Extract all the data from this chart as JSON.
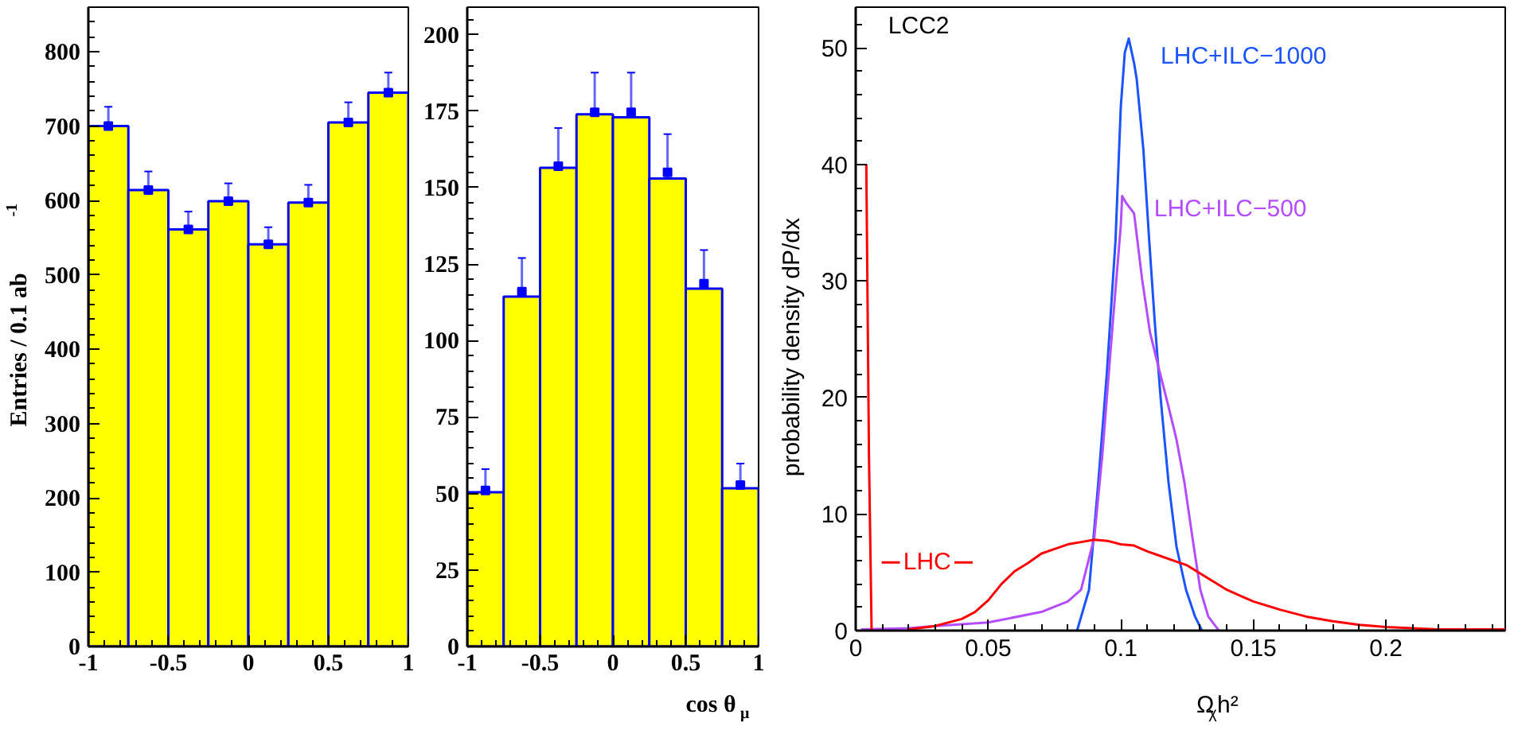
{
  "chart_data": [
    {
      "type": "histogram",
      "ylabel": "Entries / 0.1 ab$^{-1}$",
      "bins": [
        -1,
        -0.75,
        -0.5,
        -0.25,
        0,
        0.25,
        0.5,
        0.75,
        1
      ],
      "values": [
        700,
        614,
        561,
        599,
        541,
        597,
        705,
        745
      ],
      "color": "#ffff00",
      "xlim": [
        -1,
        1
      ],
      "ylim": [
        0,
        860
      ],
      "xticks": [
        -1,
        -0.5,
        0,
        0.5,
        1
      ],
      "yticks": [
        0,
        100,
        200,
        300,
        400,
        500,
        600,
        700,
        800
      ],
      "series": [
        {
          "type": "scatter",
          "x": [
            -0.875,
            -0.625,
            -0.375,
            -0.125,
            0.125,
            0.375,
            0.625,
            0.875
          ],
          "values": [
            700,
            614,
            561,
            599,
            541,
            597,
            705,
            745
          ],
          "errors": [
            26,
            25,
            24,
            24,
            23,
            24,
            27,
            27
          ],
          "color": "#0000ff",
          "marker": "square"
        }
      ]
    },
    {
      "type": "histogram",
      "xlabel": "cos θ$_{μ}$",
      "bins": [
        -1,
        -0.75,
        -0.5,
        -0.25,
        0,
        0.25,
        0.5,
        0.75,
        1
      ],
      "values": [
        50.4,
        114.4,
        156.5,
        174,
        173,
        153,
        117,
        51.7
      ],
      "color": "#ffff00",
      "xlim": [
        -1,
        1
      ],
      "ylim": [
        0,
        209
      ],
      "xticks": [
        -1,
        -0.5,
        0,
        0.5,
        1
      ],
      "yticks": [
        0,
        25,
        50,
        75,
        100,
        125,
        150,
        175,
        200
      ],
      "series": [
        {
          "type": "scatter",
          "x": [
            -0.875,
            -0.625,
            -0.375,
            -0.125,
            0.125,
            0.375,
            0.625,
            0.875
          ],
          "values": [
            51,
            116,
            157,
            174.6,
            174.6,
            155,
            118.6,
            52.8
          ],
          "errors": [
            7,
            11,
            12.5,
            13,
            13,
            12.5,
            11,
            7
          ],
          "color": "#0000ff",
          "marker": "square"
        }
      ]
    },
    {
      "type": "line",
      "xlabel": "Ω$_{χ}$h²",
      "ylabel": "probability density dP/dx",
      "annotations": [
        "LCC2"
      ],
      "xlim": [
        0,
        0.245
      ],
      "ylim": [
        0,
        53.5
      ],
      "xticks": [
        0,
        0.05,
        0.1,
        0.15,
        0.2
      ],
      "yticks": [
        0,
        10,
        20,
        30,
        40,
        50
      ],
      "line_style": "solid",
      "series": [
        {
          "name": "LHC+ILC−1000",
          "color": "#1a53ff",
          "x": [
            0.0835,
            0.088,
            0.0915,
            0.0947,
            0.098,
            0.1,
            0.1015,
            0.103,
            0.105,
            0.106,
            0.1085,
            0.1107,
            0.1128,
            0.115,
            0.118,
            0.121,
            0.1246,
            0.128,
            0.1306
          ],
          "values": [
            0,
            3.5,
            12.7,
            22,
            33.5,
            45,
            49.6,
            50.8,
            48.7,
            47.3,
            41.3,
            33.5,
            26.5,
            20,
            12.7,
            7.2,
            3.5,
            1.2,
            0
          ]
        },
        {
          "name": "LHC+ILC−500",
          "color": "#b44dff",
          "x": [
            0.002,
            0.02,
            0.03,
            0.05,
            0.07,
            0.08,
            0.085,
            0.09,
            0.093,
            0.097,
            0.1,
            0.1005,
            0.102,
            0.105,
            0.108,
            0.111,
            0.114,
            0.118,
            0.121,
            0.124,
            0.127,
            0.13,
            0.133,
            0.137
          ],
          "values": [
            0.1,
            0.2,
            0.4,
            0.7,
            1.6,
            2.5,
            3.5,
            8,
            15,
            26.5,
            34.8,
            37.3,
            36.7,
            35.8,
            30.2,
            25.6,
            22.8,
            19.2,
            16.4,
            12.7,
            8,
            3.5,
            1.2,
            0
          ]
        },
        {
          "name": "LHC",
          "color": "#ff0000",
          "x": [
            0.02,
            0.03,
            0.04,
            0.045,
            0.05,
            0.055,
            0.06,
            0.065,
            0.07,
            0.075,
            0.08,
            0.085,
            0.09,
            0.095,
            0.1,
            0.105,
            0.11,
            0.115,
            0.12,
            0.125,
            0.13,
            0.135,
            0.14,
            0.145,
            0.15,
            0.16,
            0.17,
            0.18,
            0.19,
            0.2,
            0.21,
            0.22,
            0.245
          ],
          "values": [
            0.1,
            0.4,
            1.0,
            1.6,
            2.6,
            4.0,
            5.1,
            5.8,
            6.6,
            7.0,
            7.4,
            7.6,
            7.8,
            7.7,
            7.4,
            7.3,
            6.8,
            6.4,
            6.0,
            5.6,
            4.9,
            4.2,
            3.5,
            3.0,
            2.5,
            1.8,
            1.2,
            0.8,
            0.5,
            0.3,
            0.2,
            0.1,
            0.1
          ]
        },
        {
          "color": "#ff0000",
          "x": [
            0.004,
            0.005,
            0.006
          ],
          "values": [
            40,
            15,
            0
          ]
        }
      ]
    }
  ]
}
